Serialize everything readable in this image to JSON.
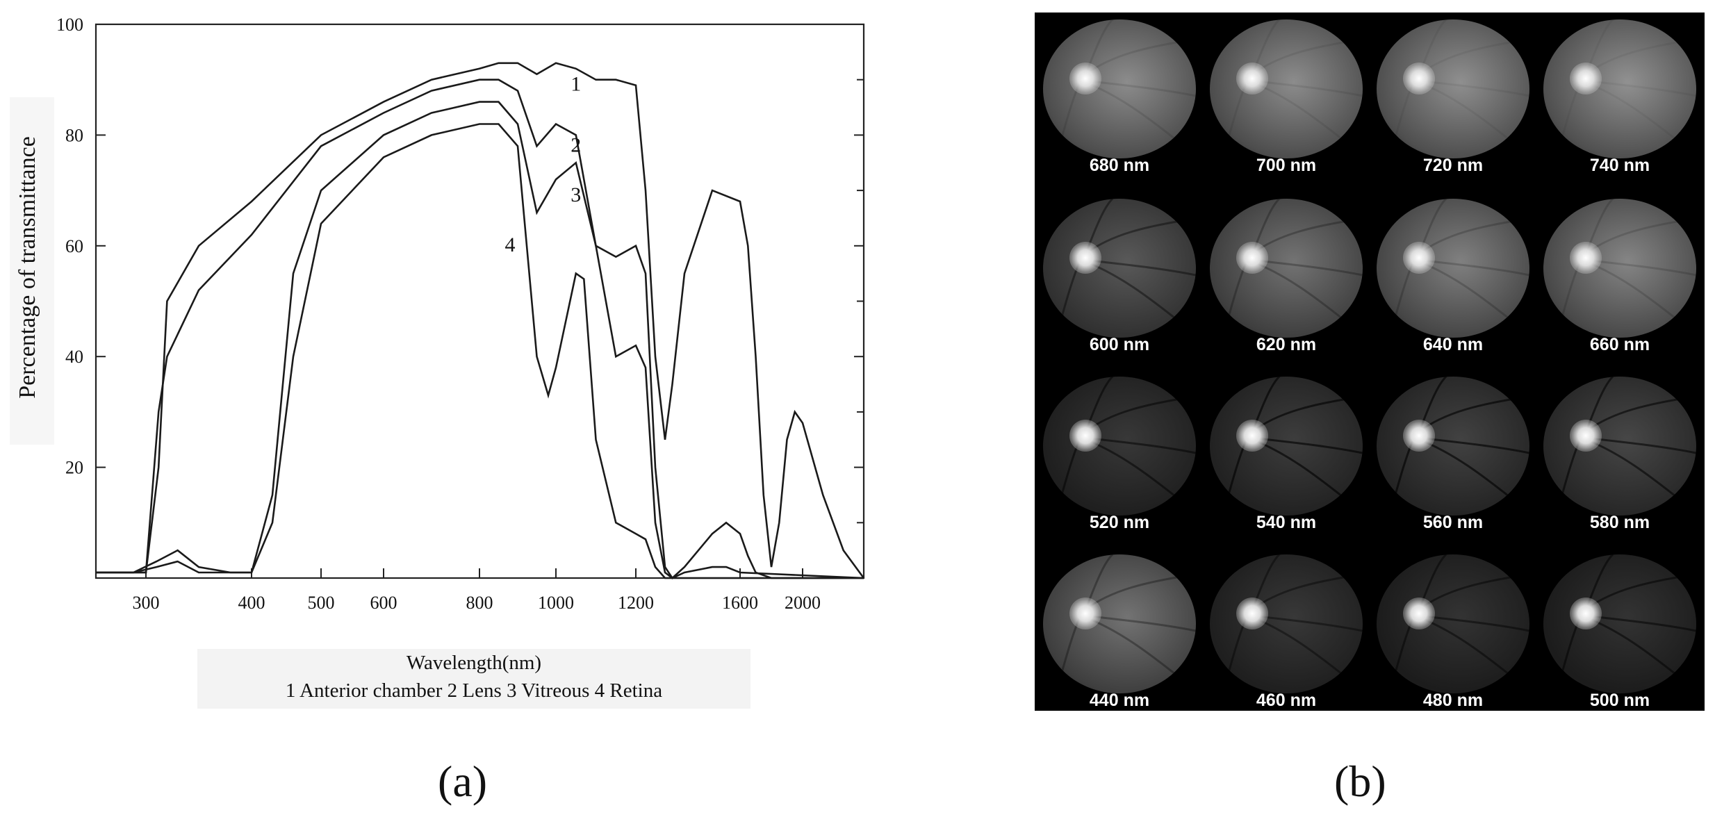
{
  "chart_data": {
    "type": "line",
    "xlabel": "Wavelength(nm)",
    "ylabel": "Percentage of transmittance",
    "legend_text": "1 Anterior chamber 2 Lens 3 Vitreous 4 Retina",
    "y_ticks": [
      20,
      40,
      60,
      80,
      100
    ],
    "x_ticks": [
      300,
      400,
      500,
      600,
      800,
      1000,
      1200,
      1600,
      2000
    ],
    "ylim": [
      0,
      100
    ],
    "xlim": [
      260,
      2300
    ],
    "series": [
      {
        "name": "1",
        "points": [
          [
            260,
            1
          ],
          [
            300,
            1
          ],
          [
            312,
            20
          ],
          [
            320,
            50
          ],
          [
            350,
            60
          ],
          [
            400,
            68
          ],
          [
            500,
            80
          ],
          [
            600,
            86
          ],
          [
            700,
            90
          ],
          [
            800,
            92
          ],
          [
            850,
            93
          ],
          [
            900,
            93
          ],
          [
            950,
            91
          ],
          [
            1000,
            93
          ],
          [
            1050,
            92
          ],
          [
            1100,
            90
          ],
          [
            1150,
            90
          ],
          [
            1200,
            89
          ],
          [
            1240,
            70
          ],
          [
            1280,
            40
          ],
          [
            1320,
            25
          ],
          [
            1350,
            35
          ],
          [
            1400,
            55
          ],
          [
            1500,
            70
          ],
          [
            1600,
            68
          ],
          [
            1650,
            60
          ],
          [
            1700,
            40
          ],
          [
            1750,
            15
          ],
          [
            1800,
            2
          ],
          [
            1850,
            10
          ],
          [
            1900,
            25
          ],
          [
            1950,
            30
          ],
          [
            2000,
            28
          ],
          [
            2100,
            15
          ],
          [
            2200,
            5
          ],
          [
            2300,
            0
          ]
        ]
      },
      {
        "name": "2",
        "points": [
          [
            260,
            1
          ],
          [
            300,
            1
          ],
          [
            312,
            30
          ],
          [
            320,
            40
          ],
          [
            350,
            52
          ],
          [
            400,
            62
          ],
          [
            500,
            78
          ],
          [
            600,
            84
          ],
          [
            700,
            88
          ],
          [
            800,
            90
          ],
          [
            850,
            90
          ],
          [
            900,
            88
          ],
          [
            950,
            78
          ],
          [
            1000,
            82
          ],
          [
            1050,
            80
          ],
          [
            1100,
            60
          ],
          [
            1150,
            58
          ],
          [
            1200,
            60
          ],
          [
            1240,
            55
          ],
          [
            1280,
            20
          ],
          [
            1320,
            2
          ],
          [
            1350,
            0
          ],
          [
            1400,
            2
          ],
          [
            1500,
            8
          ],
          [
            1550,
            10
          ],
          [
            1600,
            8
          ],
          [
            1650,
            4
          ],
          [
            1700,
            1
          ],
          [
            1800,
            0
          ],
          [
            2300,
            0
          ]
        ]
      },
      {
        "name": "3",
        "points": [
          [
            260,
            1
          ],
          [
            290,
            1
          ],
          [
            310,
            3
          ],
          [
            330,
            5
          ],
          [
            350,
            2
          ],
          [
            380,
            1
          ],
          [
            400,
            1
          ],
          [
            430,
            15
          ],
          [
            460,
            55
          ],
          [
            500,
            70
          ],
          [
            600,
            80
          ],
          [
            700,
            84
          ],
          [
            800,
            86
          ],
          [
            850,
            86
          ],
          [
            900,
            82
          ],
          [
            950,
            66
          ],
          [
            1000,
            72
          ],
          [
            1050,
            75
          ],
          [
            1100,
            60
          ],
          [
            1150,
            40
          ],
          [
            1200,
            42
          ],
          [
            1240,
            38
          ],
          [
            1280,
            10
          ],
          [
            1320,
            1
          ],
          [
            1350,
            0
          ],
          [
            1400,
            1
          ],
          [
            1500,
            2
          ],
          [
            1550,
            2
          ],
          [
            1600,
            1
          ],
          [
            2300,
            0
          ]
        ]
      },
      {
        "name": "4",
        "points": [
          [
            260,
            1
          ],
          [
            290,
            1
          ],
          [
            310,
            2
          ],
          [
            330,
            3
          ],
          [
            350,
            1
          ],
          [
            380,
            1
          ],
          [
            400,
            1
          ],
          [
            430,
            10
          ],
          [
            460,
            40
          ],
          [
            500,
            64
          ],
          [
            600,
            76
          ],
          [
            700,
            80
          ],
          [
            800,
            82
          ],
          [
            850,
            82
          ],
          [
            900,
            78
          ],
          [
            950,
            40
          ],
          [
            980,
            33
          ],
          [
            1000,
            38
          ],
          [
            1050,
            55
          ],
          [
            1070,
            54
          ],
          [
            1100,
            25
          ],
          [
            1150,
            10
          ],
          [
            1200,
            8
          ],
          [
            1240,
            7
          ],
          [
            1280,
            2
          ],
          [
            1320,
            0
          ],
          [
            2300,
            0
          ]
        ]
      }
    ]
  },
  "panel_a_tag": "(a)",
  "panel_b_tag": "(b)",
  "retina_images": [
    {
      "label": "680 nm",
      "brightness": 0.55,
      "vessels": 0.1
    },
    {
      "label": "700 nm",
      "brightness": 0.55,
      "vessels": 0.08
    },
    {
      "label": "720 nm",
      "brightness": 0.56,
      "vessels": 0.06
    },
    {
      "label": "740 nm",
      "brightness": 0.57,
      "vessels": 0.05
    },
    {
      "label": "600 nm",
      "brightness": 0.35,
      "vessels": 0.4
    },
    {
      "label": "620 nm",
      "brightness": 0.45,
      "vessels": 0.25
    },
    {
      "label": "640 nm",
      "brightness": 0.5,
      "vessels": 0.18
    },
    {
      "label": "660 nm",
      "brightness": 0.52,
      "vessels": 0.14
    },
    {
      "label": "520 nm",
      "brightness": 0.22,
      "vessels": 0.5
    },
    {
      "label": "540 nm",
      "brightness": 0.24,
      "vessels": 0.6
    },
    {
      "label": "560 nm",
      "brightness": 0.26,
      "vessels": 0.6
    },
    {
      "label": "580 nm",
      "brightness": 0.28,
      "vessels": 0.55
    },
    {
      "label": "440 nm",
      "brightness": 0.45,
      "vessels": 0.3
    },
    {
      "label": "460 nm",
      "brightness": 0.22,
      "vessels": 0.4
    },
    {
      "label": "480 nm",
      "brightness": 0.2,
      "vessels": 0.45
    },
    {
      "label": "500 nm",
      "brightness": 0.2,
      "vessels": 0.5
    }
  ]
}
